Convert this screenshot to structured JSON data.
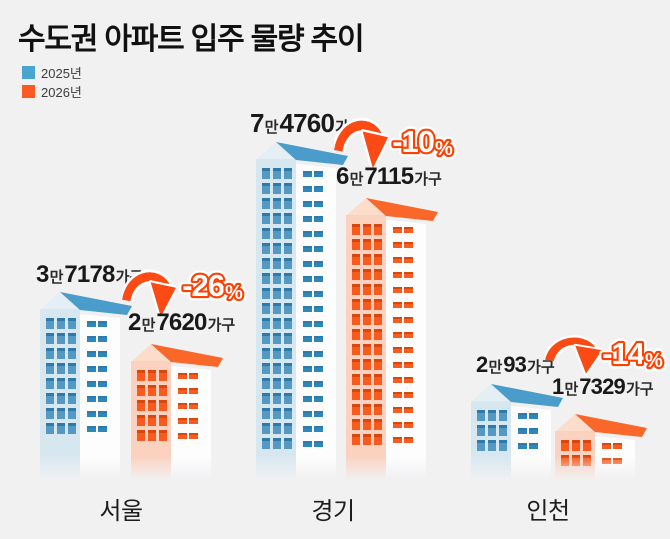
{
  "title": "수도권 아파트 입주 물량 추이",
  "legend": [
    {
      "label": "2025년",
      "color": "#4AA4D0"
    },
    {
      "label": "2026년",
      "color": "#FB5A22"
    }
  ],
  "colors": {
    "background": "#F1F1F2",
    "blue_roof": "#4A9DCA",
    "blue_wall": "#D7E7F0",
    "orange_roof": "#F9672A",
    "orange_wall": "#FBD2C0",
    "arrow": "#FB4A14",
    "percent_stroke": "#FF4000",
    "text": "#191919"
  },
  "chart_data": {
    "type": "bar",
    "subtype": "pictorial-buildings",
    "title": "수도권 아파트 입주 물량 추이",
    "categories": [
      "서울",
      "경기",
      "인천"
    ],
    "series": [
      {
        "name": "2025년",
        "values": [
          37178,
          74760,
          20093
        ]
      },
      {
        "name": "2026년",
        "values": [
          27620,
          67115,
          17329
        ]
      }
    ],
    "change_percent": [
      -26,
      -10,
      -14
    ],
    "unit": "가구",
    "legend_position": "top-left",
    "grid": false
  },
  "groups": [
    {
      "region": "서울",
      "y2025": {
        "lead": "3",
        "mid": "만",
        "num": "7178",
        "unit": "가구"
      },
      "y2026": {
        "lead": "2",
        "mid": "만",
        "num": "7620",
        "unit": "가구"
      },
      "pct": "-26",
      "pct_unit": "%"
    },
    {
      "region": "경기",
      "y2025": {
        "lead": "7",
        "mid": "만",
        "num": "4760",
        "unit": "가구"
      },
      "y2026": {
        "lead": "6",
        "mid": "만",
        "num": "7115",
        "unit": "가구"
      },
      "pct": "-10",
      "pct_unit": "%"
    },
    {
      "region": "인천",
      "y2025": {
        "lead": "2",
        "mid": "만",
        "num": "93",
        "unit": "가구"
      },
      "y2026": {
        "lead": "1",
        "mid": "만",
        "num": "7329",
        "unit": "가구"
      },
      "pct": "-14",
      "pct_unit": "%"
    }
  ]
}
